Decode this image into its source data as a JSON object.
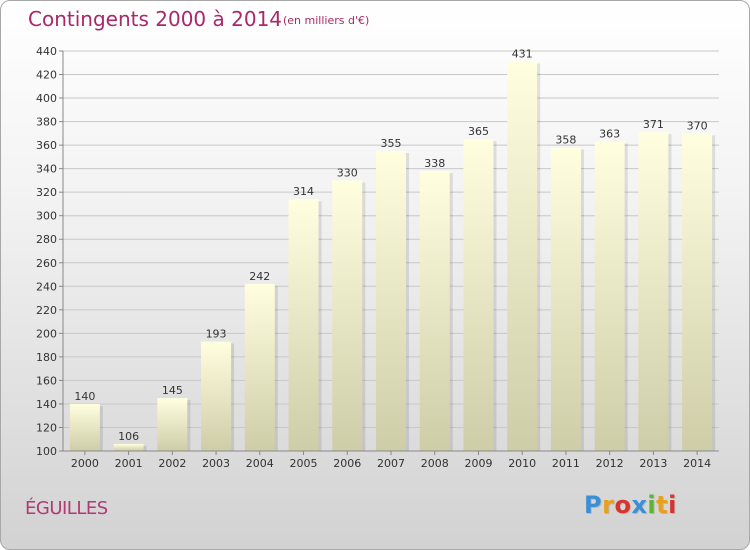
{
  "header": {
    "title": "Contingents 2000 à 2014",
    "subtitle": "(en milliers d'€)"
  },
  "footer": {
    "commune": "ÉGUILLES",
    "logo": "Proxiti",
    "logo_colors": [
      "#3a8fd6",
      "#e8a11c",
      "#d9342b",
      "#3a8fd6",
      "#5cb531",
      "#e8a11c",
      "#d9342b"
    ]
  },
  "colors": {
    "bar_top": "#ffffe0",
    "bar_bottom": "#cdcda8",
    "grid": "#c8c8c8",
    "axis": "#888888"
  },
  "chart_data": {
    "type": "bar",
    "title": "Contingents 2000 à 2014",
    "subtitle": "(en milliers d'€)",
    "xlabel": "",
    "ylabel": "",
    "categories": [
      "2000",
      "2001",
      "2002",
      "2003",
      "2004",
      "2005",
      "2006",
      "2007",
      "2008",
      "2009",
      "2010",
      "2011",
      "2012",
      "2013",
      "2014"
    ],
    "values": [
      140,
      106,
      145,
      193,
      242,
      314,
      330,
      355,
      338,
      365,
      431,
      358,
      363,
      371,
      370
    ],
    "ylim": [
      100,
      440
    ],
    "yticks": [
      100,
      120,
      140,
      160,
      180,
      200,
      220,
      240,
      260,
      280,
      300,
      320,
      340,
      360,
      380,
      400,
      420,
      440
    ],
    "grid": true,
    "data_labels": true
  }
}
